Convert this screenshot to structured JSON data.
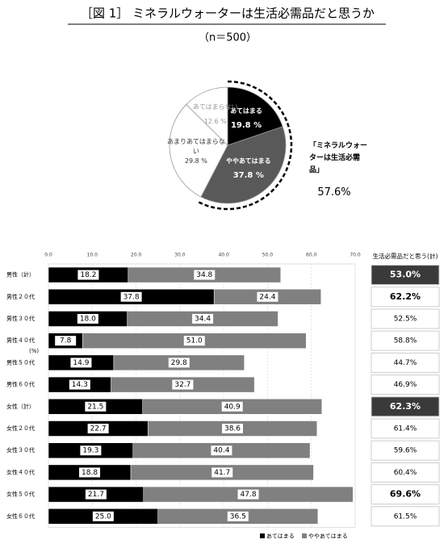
{
  "chart_data": [
    {
      "type": "pie",
      "title": "［図 1］ ミネラルウォーターは生活必需品だと思うか",
      "subtitle": "（n＝500）",
      "categories": [
        "あてはまる",
        "ややあてはまる",
        "あまりあてはまらない",
        "あてはまらない"
      ],
      "values": [
        19.8,
        37.8,
        29.8,
        12.6
      ],
      "value_labels": [
        "19.8 %",
        "37.8 %",
        "29.8 %",
        "12.6 %"
      ],
      "colors": [
        "#000000",
        "#595959",
        "#ffffff",
        "#ffffff"
      ],
      "label_colors": [
        "#ffffff",
        "#ffffff",
        "#333333",
        "#999999"
      ],
      "annotation": "「ミネラルウォーターは生活必需品」",
      "annotation_value": "57.6%"
    },
    {
      "type": "stacked-bar-horizontal",
      "categories": [
        "男性（計）",
        "男性２０代",
        "男性３０代",
        "男性４０代",
        "男性５０代",
        "男性６０代",
        "女性（計）",
        "女性２０代",
        "女性３０代",
        "女性４０代",
        "女性５０代",
        "女性６０代"
      ],
      "unit_label": "(%)",
      "series": [
        {
          "name": "あてはまる",
          "color": "#000000",
          "values": [
            18.2,
            37.8,
            18.0,
            7.8,
            14.9,
            14.3,
            21.5,
            22.7,
            19.3,
            18.8,
            21.7,
            25.0
          ],
          "value_labels": [
            "18.2",
            "37.8",
            "18.0",
            "7.8",
            "14.9",
            "14.3",
            "21.5",
            "22.7",
            "19.3",
            "18.8",
            "21.7",
            "25.0"
          ]
        },
        {
          "name": "ややあてはまる",
          "color": "#808080",
          "values": [
            34.8,
            24.4,
            34.4,
            51.0,
            29.8,
            32.7,
            40.9,
            38.6,
            40.4,
            41.7,
            47.8,
            36.5
          ],
          "value_labels": [
            "34.8",
            "24.4",
            "34.4",
            "51.0",
            "29.8",
            "32.7",
            "40.9",
            "38.6",
            "40.4",
            "41.7",
            "47.8",
            "36.5"
          ]
        }
      ],
      "xlim": [
        0,
        70
      ],
      "xticks": [
        {
          "value": 0,
          "label": "0.0"
        },
        {
          "value": 10,
          "label": "10.0"
        },
        {
          "value": 20,
          "label": "20.0"
        },
        {
          "value": 30,
          "label": "30.0"
        },
        {
          "value": 40,
          "label": "40.0"
        },
        {
          "value": 50,
          "label": "50.0"
        },
        {
          "value": 60,
          "label": "60.0"
        },
        {
          "value": 70,
          "label": "70.0"
        }
      ],
      "grid": true,
      "total_column": {
        "title": "生活必需品だと思う(計)",
        "values": [
          53.0,
          62.2,
          52.5,
          58.8,
          44.7,
          46.9,
          62.3,
          61.4,
          59.6,
          60.4,
          69.6,
          61.5
        ],
        "value_labels": [
          "53.0%",
          "62.2%",
          "52.5%",
          "58.8%",
          "44.7%",
          "46.9%",
          "62.3%",
          "61.4%",
          "59.6%",
          "60.4%",
          "69.6%",
          "61.5%"
        ],
        "emphasis": [
          "dark",
          "bold",
          "none",
          "none",
          "none",
          "none",
          "dark",
          "none",
          "none",
          "none",
          "bold",
          "none"
        ]
      },
      "legend": "bottom"
    }
  ]
}
